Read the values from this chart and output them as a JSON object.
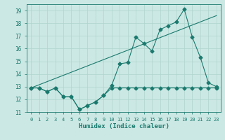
{
  "xlabel": "Humidex (Indice chaleur)",
  "bg_color": "#cce8e4",
  "line_color": "#1a7a6e",
  "grid_color": "#afd4ce",
  "xlim": [
    -0.5,
    23.5
  ],
  "ylim": [
    11,
    19.5
  ],
  "yticks": [
    11,
    12,
    13,
    14,
    15,
    16,
    17,
    18,
    19
  ],
  "xticks": [
    0,
    1,
    2,
    3,
    4,
    5,
    6,
    7,
    8,
    9,
    10,
    11,
    12,
    13,
    14,
    15,
    16,
    17,
    18,
    19,
    20,
    21,
    22,
    23
  ],
  "series1_x": [
    0,
    1,
    2,
    3,
    4,
    5,
    6,
    7,
    8,
    9,
    10,
    11,
    12,
    13,
    14,
    15,
    16,
    17,
    18,
    19,
    20,
    21,
    22,
    23
  ],
  "series1_y": [
    12.9,
    12.9,
    12.6,
    12.9,
    12.2,
    12.2,
    11.2,
    11.5,
    11.8,
    12.3,
    13.1,
    14.8,
    14.9,
    16.9,
    16.4,
    15.8,
    17.5,
    17.8,
    18.1,
    19.1,
    16.9,
    15.3,
    13.3,
    13.0
  ],
  "series2_x": [
    0,
    23
  ],
  "series2_y": [
    12.9,
    18.6
  ],
  "series3_x": [
    0,
    1,
    2,
    3,
    4,
    5,
    6,
    7,
    8,
    9,
    10,
    11,
    12,
    13,
    14,
    15,
    16,
    17,
    18,
    19,
    20,
    21,
    22,
    23
  ],
  "series3_y": [
    12.9,
    12.9,
    12.6,
    12.9,
    12.2,
    12.2,
    11.2,
    11.5,
    11.8,
    12.3,
    12.9,
    12.9,
    12.9,
    12.9,
    12.9,
    12.9,
    12.9,
    12.9,
    12.9,
    12.9,
    12.9,
    12.9,
    12.9,
    12.9
  ]
}
